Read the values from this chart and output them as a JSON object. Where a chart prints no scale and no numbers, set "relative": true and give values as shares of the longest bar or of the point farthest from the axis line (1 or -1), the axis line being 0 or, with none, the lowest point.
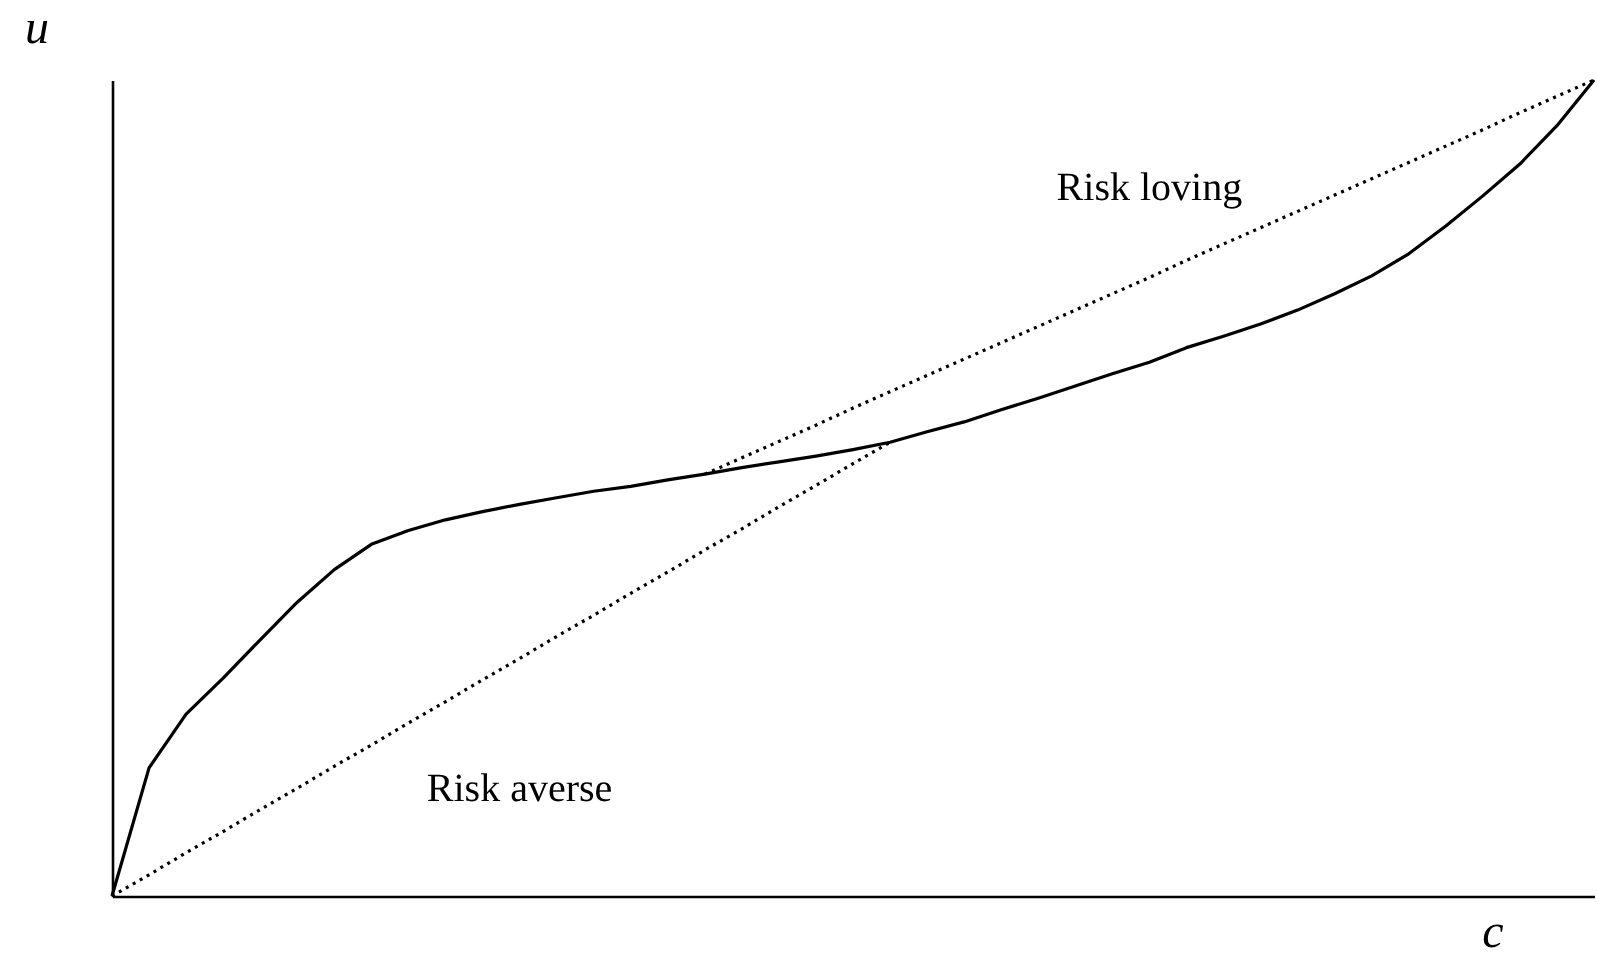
{
  "chart_data": {
    "type": "line",
    "relative": true,
    "xlabel": "c",
    "ylabel": "u",
    "tick_labels": false,
    "legend": false,
    "categories": [
      null,
      null,
      null,
      null,
      null,
      null,
      null,
      null,
      null,
      null,
      null,
      null,
      null,
      null,
      null,
      null,
      null,
      null,
      null,
      null,
      null,
      null,
      null,
      null,
      null,
      null,
      null,
      null,
      null,
      null,
      null,
      null,
      null,
      null,
      null,
      null,
      null,
      null,
      null,
      null,
      null
    ],
    "series": [
      {
        "color": "#000000",
        "line_style": "solid",
        "values": [
          0,
          0.157,
          0.223,
          0.267,
          0.314,
          0.36,
          0.4,
          0.431,
          0.448,
          0.461,
          0.471,
          0.48,
          0.488,
          0.496,
          0.502,
          0.51,
          0.517,
          0.525,
          0.532,
          0.539,
          0.547,
          0.556,
          0.569,
          0.581,
          0.596,
          0.61,
          0.625,
          0.64,
          0.654,
          0.672,
          0.686,
          0.701,
          0.718,
          0.738,
          0.76,
          0.787,
          0.821,
          0.858,
          0.897,
          0.944,
          1
        ]
      },
      {
        "name": "Risk averse",
        "color": "#000000",
        "line_style": "dotted",
        "values": [
          0,
          0.026,
          0.053,
          0.079,
          0.106,
          0.132,
          0.159,
          0.185,
          0.212,
          0.238,
          0.265,
          0.291,
          0.318,
          0.344,
          0.371,
          0.397,
          0.424,
          0.45,
          0.477,
          0.503,
          0.53,
          0.556,
          null,
          null,
          null,
          null,
          null,
          null,
          null,
          null,
          null,
          null,
          null,
          null,
          null,
          null,
          null,
          null,
          null,
          null,
          null
        ]
      },
      {
        "name": "Risk loving",
        "color": "#000000",
        "line_style": "dotted",
        "values": [
          null,
          null,
          null,
          null,
          null,
          null,
          null,
          null,
          null,
          null,
          null,
          null,
          null,
          null,
          null,
          null,
          0.517,
          0.537,
          0.557,
          0.577,
          0.598,
          0.618,
          0.638,
          0.658,
          0.678,
          0.698,
          0.718,
          0.738,
          0.758,
          0.779,
          0.799,
          0.819,
          0.839,
          0.859,
          0.879,
          0.899,
          0.919,
          0.939,
          0.96,
          0.98,
          1
        ]
      }
    ]
  }
}
